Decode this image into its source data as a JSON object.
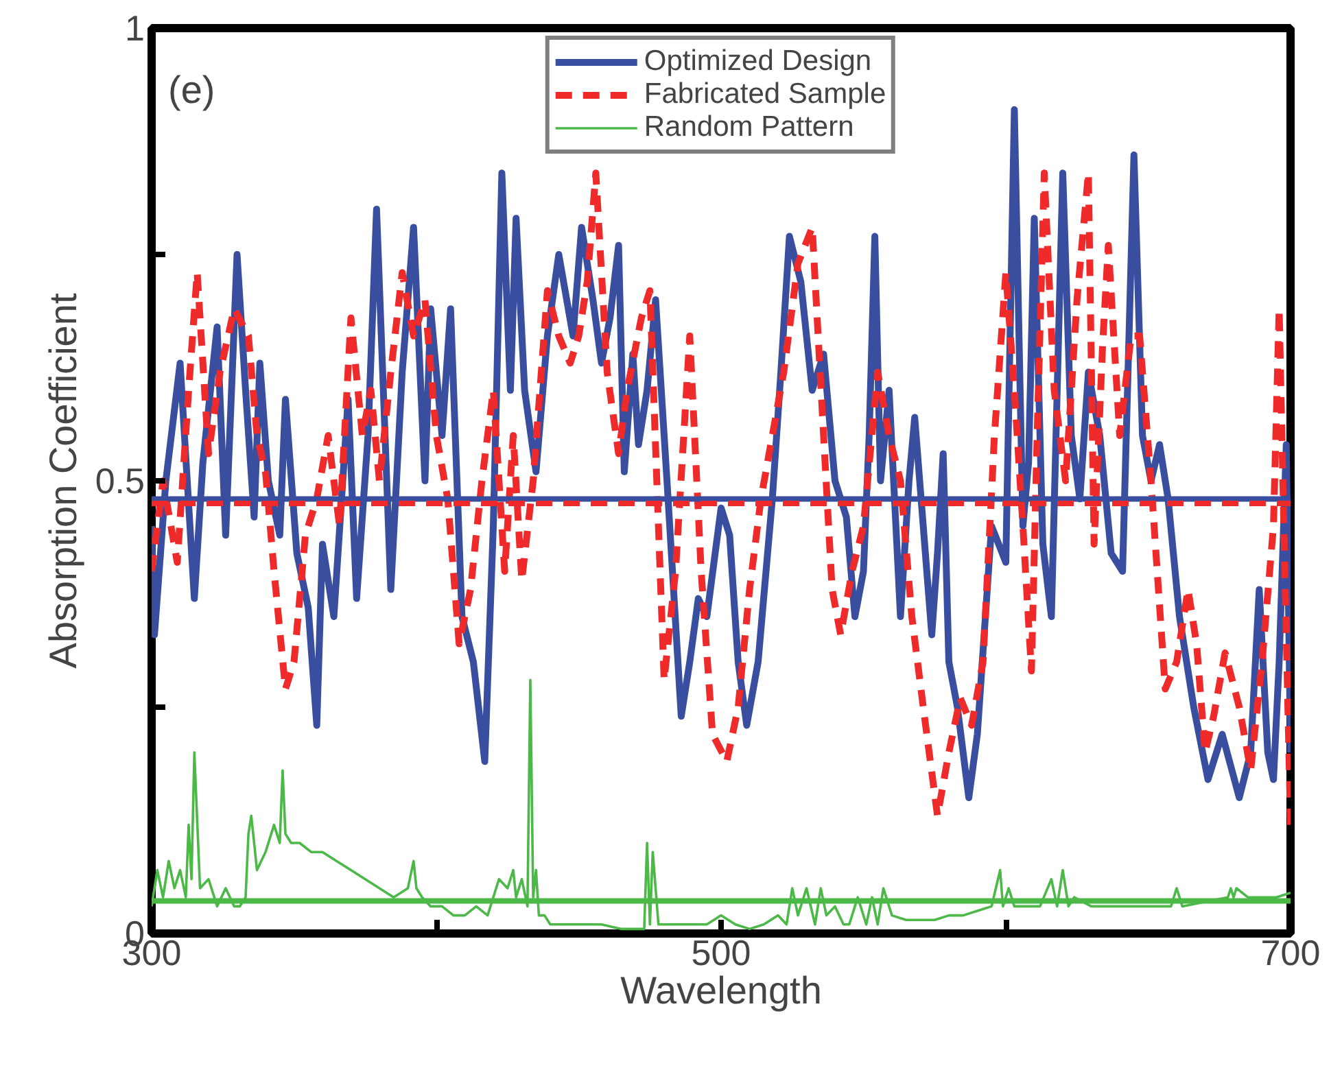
{
  "chart_data": {
    "type": "line",
    "xlabel": "Wavelength",
    "ylabel": "Absorption Coefficient",
    "annotations": [
      "(e)"
    ],
    "xlim": [
      300,
      700
    ],
    "xticks": [
      300,
      {
        "value": 400,
        "label": null
      },
      500,
      {
        "value": 600,
        "label": null
      },
      700
    ],
    "ylim": [
      0,
      1
    ],
    "yticks": [
      0,
      {
        "value": 0.25,
        "label": null
      },
      0.5,
      {
        "value": 0.75,
        "label": null
      },
      1
    ],
    "grid": false,
    "legend": "top",
    "marker": "none",
    "series": [
      {
        "name": "Optimized Design",
        "color": "#3a4ea0",
        "line_style": "solid",
        "x": [
          300,
          301,
          305,
          310,
          315,
          318,
          323,
          326,
          330,
          333,
          336,
          338,
          341,
          345,
          347,
          351,
          355,
          358,
          360,
          364,
          369,
          372,
          376,
          379,
          384,
          388,
          392,
          396,
          398,
          402,
          405,
          409,
          413,
          417,
          420,
          423,
          426,
          428,
          431,
          435,
          439,
          443,
          448,
          451,
          455,
          458,
          461,
          464,
          466,
          469,
          471,
          474,
          477,
          481,
          486,
          489,
          492,
          495,
          500,
          503,
          506,
          509,
          513,
          518,
          521,
          524,
          528,
          532,
          536,
          540,
          544,
          547,
          550,
          552,
          554,
          556,
          559,
          563,
          566,
          568,
          571,
          574,
          576,
          578,
          580,
          583,
          587,
          590,
          595,
          600,
          603,
          606,
          608,
          610,
          613,
          616,
          620,
          623,
          626,
          629,
          633,
          637,
          641,
          645,
          648,
          651,
          654,
          657,
          661,
          666,
          671,
          676,
          682,
          686,
          689,
          692,
          694,
          696,
          698.5,
          700
        ],
        "values": [
          0.45,
          0.33,
          0.5,
          0.63,
          0.37,
          0.52,
          0.67,
          0.44,
          0.75,
          0.6,
          0.46,
          0.63,
          0.5,
          0.44,
          0.59,
          0.42,
          0.36,
          0.23,
          0.43,
          0.35,
          0.59,
          0.37,
          0.55,
          0.8,
          0.38,
          0.62,
          0.78,
          0.5,
          0.69,
          0.55,
          0.69,
          0.35,
          0.3,
          0.19,
          0.45,
          0.84,
          0.6,
          0.79,
          0.6,
          0.51,
          0.66,
          0.75,
          0.66,
          0.78,
          0.7,
          0.63,
          0.68,
          0.76,
          0.51,
          0.64,
          0.54,
          0.6,
          0.7,
          0.5,
          0.24,
          0.3,
          0.37,
          0.35,
          0.47,
          0.44,
          0.3,
          0.23,
          0.3,
          0.48,
          0.62,
          0.77,
          0.72,
          0.6,
          0.64,
          0.5,
          0.46,
          0.35,
          0.4,
          0.55,
          0.77,
          0.5,
          0.6,
          0.35,
          0.5,
          0.57,
          0.45,
          0.33,
          0.42,
          0.53,
          0.3,
          0.25,
          0.15,
          0.22,
          0.45,
          0.41,
          0.91,
          0.45,
          0.52,
          0.79,
          0.43,
          0.35,
          0.84,
          0.55,
          0.48,
          0.62,
          0.55,
          0.42,
          0.4,
          0.86,
          0.55,
          0.5,
          0.54,
          0.48,
          0.35,
          0.25,
          0.17,
          0.22,
          0.15,
          0.2,
          0.38,
          0.2,
          0.17,
          0.3,
          0.54,
          0.2
        ]
      },
      {
        "name": "Fabricated Sample",
        "color": "#ee2a2a",
        "line_style": "dashed",
        "x": [
          300,
          304,
          309,
          313,
          316,
          320,
          324,
          329,
          334,
          337,
          340,
          343,
          347,
          350,
          354,
          358,
          362,
          366,
          370,
          374,
          377,
          380,
          384,
          388,
          392,
          396,
          400,
          404,
          408,
          412,
          416,
          420,
          424,
          427,
          430,
          434,
          439,
          443,
          447,
          450,
          453,
          456,
          460,
          464,
          467,
          472,
          475,
          478,
          480,
          484,
          489,
          493,
          497,
          502,
          506,
          510,
          514,
          518,
          522,
          527,
          532,
          536,
          539,
          542,
          546,
          550,
          555,
          559,
          563,
          567,
          571,
          576,
          580,
          584,
          588,
          592,
          596,
          600,
          603,
          606,
          609,
          611,
          613.5,
          617,
          621,
          625,
          629,
          631,
          634,
          636,
          640,
          644,
          647,
          651,
          656,
          660,
          664,
          667,
          670,
          673,
          677,
          682,
          686,
          690,
          694,
          696,
          698,
          700
        ],
        "values": [
          0.4,
          0.5,
          0.41,
          0.6,
          0.73,
          0.53,
          0.62,
          0.69,
          0.66,
          0.55,
          0.51,
          0.4,
          0.27,
          0.3,
          0.44,
          0.48,
          0.55,
          0.45,
          0.68,
          0.55,
          0.6,
          0.5,
          0.62,
          0.73,
          0.66,
          0.7,
          0.55,
          0.48,
          0.32,
          0.38,
          0.5,
          0.6,
          0.4,
          0.55,
          0.39,
          0.5,
          0.71,
          0.66,
          0.63,
          0.66,
          0.72,
          0.84,
          0.62,
          0.53,
          0.6,
          0.68,
          0.71,
          0.45,
          0.28,
          0.4,
          0.66,
          0.4,
          0.22,
          0.19,
          0.25,
          0.38,
          0.48,
          0.55,
          0.62,
          0.74,
          0.78,
          0.55,
          0.38,
          0.33,
          0.4,
          0.45,
          0.62,
          0.55,
          0.5,
          0.35,
          0.25,
          0.13,
          0.2,
          0.26,
          0.23,
          0.3,
          0.55,
          0.73,
          0.6,
          0.45,
          0.29,
          0.55,
          0.84,
          0.6,
          0.5,
          0.7,
          0.84,
          0.43,
          0.65,
          0.76,
          0.55,
          0.66,
          0.66,
          0.5,
          0.27,
          0.3,
          0.38,
          0.32,
          0.2,
          0.24,
          0.31,
          0.25,
          0.18,
          0.3,
          0.45,
          0.69,
          0.4,
          0.12
        ]
      },
      {
        "name": "Random Pattern",
        "color": "#4cb848",
        "line_style": "solid",
        "x": [
          300,
          302,
          304,
          306,
          308,
          310,
          312,
          313,
          314,
          315,
          317,
          320,
          323,
          326,
          329,
          331,
          333,
          334,
          335,
          337,
          340,
          343,
          345,
          346,
          347,
          349,
          352,
          356,
          360,
          365,
          370,
          375,
          380,
          385,
          390,
          392,
          393,
          395,
          398,
          402,
          406,
          410,
          414,
          418,
          422,
          425,
          427,
          428,
          430,
          432,
          433,
          434,
          435,
          436,
          438,
          440,
          444,
          450,
          458,
          465,
          470,
          473,
          474,
          475,
          476,
          478,
          479,
          480,
          484,
          490,
          495,
          500,
          505,
          510,
          515,
          520,
          523,
          525,
          527,
          530,
          533,
          535,
          537,
          540,
          543,
          545,
          548,
          551,
          553,
          555,
          557,
          560,
          565,
          570,
          575,
          580,
          585,
          590,
          595,
          598,
          599,
          600,
          601,
          603,
          607,
          612,
          616,
          618,
          620,
          622,
          624,
          630,
          640,
          650,
          658,
          660,
          662,
          670,
          678,
          679,
          680,
          681,
          685,
          690,
          695,
          700
        ],
        "values": [
          0.03,
          0.07,
          0.04,
          0.08,
          0.05,
          0.07,
          0.04,
          0.12,
          0.06,
          0.2,
          0.05,
          0.06,
          0.03,
          0.05,
          0.03,
          0.03,
          0.04,
          0.11,
          0.13,
          0.07,
          0.09,
          0.12,
          0.1,
          0.18,
          0.11,
          0.1,
          0.1,
          0.09,
          0.09,
          0.08,
          0.07,
          0.06,
          0.05,
          0.04,
          0.05,
          0.08,
          0.05,
          0.04,
          0.03,
          0.03,
          0.02,
          0.02,
          0.03,
          0.02,
          0.06,
          0.05,
          0.07,
          0.04,
          0.06,
          0.03,
          0.28,
          0.04,
          0.07,
          0.02,
          0.02,
          0.01,
          0.01,
          0.01,
          0.01,
          0.005,
          0.005,
          0.005,
          0.1,
          0.01,
          0.09,
          0.01,
          0.01,
          0.01,
          0.01,
          0.01,
          0.01,
          0.02,
          0.01,
          0.005,
          0.01,
          0.02,
          0.01,
          0.05,
          0.02,
          0.05,
          0.01,
          0.05,
          0.02,
          0.03,
          0.01,
          0.01,
          0.04,
          0.01,
          0.04,
          0.01,
          0.05,
          0.02,
          0.015,
          0.015,
          0.015,
          0.02,
          0.02,
          0.025,
          0.03,
          0.07,
          0.03,
          0.04,
          0.05,
          0.03,
          0.03,
          0.03,
          0.06,
          0.03,
          0.07,
          0.03,
          0.04,
          0.03,
          0.03,
          0.03,
          0.03,
          0.05,
          0.03,
          0.035,
          0.04,
          0.05,
          0.04,
          0.05,
          0.04,
          0.04,
          0.04,
          0.045
        ]
      }
    ],
    "ref_lines": [
      {
        "axis": "y",
        "value": 0.48,
        "label": null,
        "color": "#3a4ea0",
        "line_style": "solid"
      },
      {
        "axis": "y",
        "value": 0.475,
        "label": null,
        "color": "#ee2a2a",
        "line_style": "dashed"
      },
      {
        "axis": "y",
        "value": 0.036,
        "label": null,
        "color": "#4cb848",
        "line_style": "solid"
      }
    ]
  }
}
